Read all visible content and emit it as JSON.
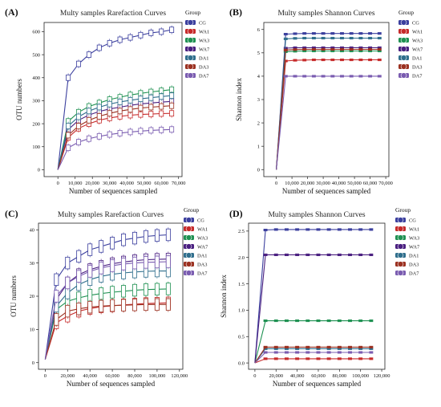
{
  "colors": {
    "CG": "#3b3f9e",
    "WA1": "#c62a2a",
    "WA3": "#1f9152",
    "WA7": "#4a1f80",
    "DA1": "#2f6e8c",
    "DA3": "#9b3121",
    "DA7": "#7a5cb0"
  },
  "chart_data": [
    {
      "panel": "(A)",
      "type": "line",
      "title": "Multy samples Rarefaction Curves",
      "xlabel": "Number of sequences sampled",
      "ylabel": "OTU numbers",
      "xlim": [
        -8000,
        72000
      ],
      "ylim": [
        -30,
        640
      ],
      "xticks": [
        0,
        10000,
        20000,
        30000,
        40000,
        50000,
        60000,
        70000
      ],
      "xtick_labels": [
        "0",
        "10,000",
        "20,000",
        "30,000",
        "40,000",
        "50,000",
        "60,000",
        "70,000"
      ],
      "yticks": [
        0,
        100,
        200,
        300,
        400,
        500,
        600
      ],
      "ytick_labels": [
        "0",
        "100",
        "200",
        "300",
        "400",
        "500",
        "600"
      ],
      "legend_title": "Group",
      "legend_position": "right",
      "series": [
        {
          "name": "CG",
          "x": [
            0,
            6000,
            12000,
            18000,
            24000,
            30000,
            36000,
            42000,
            48000,
            54000,
            60000,
            66000
          ],
          "values": [
            0,
            400,
            460,
            500,
            530,
            550,
            565,
            575,
            585,
            595,
            600,
            608
          ]
        },
        {
          "name": "WA1",
          "x": [
            0,
            6000,
            12000,
            18000,
            24000,
            30000,
            36000,
            42000,
            48000,
            54000,
            60000,
            66000
          ],
          "values": [
            0,
            140,
            180,
            200,
            215,
            225,
            232,
            237,
            240,
            242,
            244,
            245
          ]
        },
        {
          "name": "WA3",
          "x": [
            0,
            6000,
            12000,
            18000,
            24000,
            30000,
            36000,
            42000,
            48000,
            54000,
            60000,
            66000
          ],
          "values": [
            0,
            210,
            250,
            275,
            290,
            305,
            315,
            325,
            332,
            338,
            343,
            348
          ]
        },
        {
          "name": "WA7",
          "x": [
            0,
            6000,
            12000,
            18000,
            24000,
            30000,
            36000,
            42000,
            48000,
            54000,
            60000,
            66000
          ],
          "values": [
            0,
            175,
            215,
            238,
            253,
            264,
            272,
            280,
            286,
            290,
            294,
            297
          ]
        },
        {
          "name": "DA1",
          "x": [
            0,
            6000,
            12000,
            18000,
            24000,
            30000,
            36000,
            42000,
            48000,
            54000,
            60000,
            66000
          ],
          "values": [
            0,
            190,
            230,
            255,
            272,
            285,
            295,
            302,
            308,
            313,
            318,
            322
          ]
        },
        {
          "name": "DA3",
          "x": [
            0,
            6000,
            12000,
            18000,
            24000,
            30000,
            36000,
            42000,
            48000,
            54000,
            60000,
            66000
          ],
          "values": [
            0,
            150,
            190,
            215,
            232,
            245,
            255,
            262,
            268,
            272,
            275,
            278
          ]
        },
        {
          "name": "DA7",
          "x": [
            0,
            6000,
            12000,
            18000,
            24000,
            30000,
            36000,
            42000,
            48000,
            54000,
            60000,
            66000
          ],
          "values": [
            0,
            95,
            120,
            135,
            145,
            153,
            159,
            164,
            168,
            171,
            173,
            175
          ]
        }
      ]
    },
    {
      "panel": "(B)",
      "type": "line",
      "title": "Multy samples Shannon Curves",
      "xlabel": "Number of sequences sampled",
      "ylabel": "Shannon index",
      "xlim": [
        -8000,
        72000
      ],
      "ylim": [
        -0.3,
        6.3
      ],
      "xticks": [
        0,
        10000,
        20000,
        30000,
        40000,
        50000,
        60000,
        70000
      ],
      "xtick_labels": [
        "0",
        "10,000",
        "20,000",
        "30,000",
        "40,000",
        "50,000",
        "60,000",
        "70,000"
      ],
      "yticks": [
        0,
        1,
        2,
        3,
        4,
        5,
        6
      ],
      "ytick_labels": [
        "0",
        "1",
        "2",
        "3",
        "4",
        "5",
        "6"
      ],
      "legend_title": "Group",
      "legend_position": "right",
      "series": [
        {
          "name": "CG",
          "x": [
            0,
            6000,
            12000,
            18000,
            24000,
            30000,
            36000,
            42000,
            48000,
            54000,
            60000,
            66000
          ],
          "values": [
            0,
            5.8,
            5.82,
            5.83,
            5.83,
            5.83,
            5.83,
            5.83,
            5.83,
            5.83,
            5.83,
            5.83
          ]
        },
        {
          "name": "WA1",
          "x": [
            0,
            6000,
            12000,
            18000,
            24000,
            30000,
            36000,
            42000,
            48000,
            54000,
            60000,
            66000
          ],
          "values": [
            0,
            4.65,
            4.68,
            4.69,
            4.7,
            4.7,
            4.7,
            4.7,
            4.7,
            4.7,
            4.7,
            4.7
          ]
        },
        {
          "name": "WA3",
          "x": [
            0,
            6000,
            12000,
            18000,
            24000,
            30000,
            36000,
            42000,
            48000,
            54000,
            60000,
            66000
          ],
          "values": [
            0,
            5.05,
            5.07,
            5.08,
            5.08,
            5.08,
            5.08,
            5.08,
            5.08,
            5.08,
            5.08,
            5.08
          ]
        },
        {
          "name": "WA7",
          "x": [
            0,
            6000,
            12000,
            18000,
            24000,
            30000,
            36000,
            42000,
            48000,
            54000,
            60000,
            66000
          ],
          "values": [
            0,
            5.2,
            5.22,
            5.22,
            5.22,
            5.22,
            5.22,
            5.22,
            5.22,
            5.22,
            5.22,
            5.22
          ]
        },
        {
          "name": "DA1",
          "x": [
            0,
            6000,
            12000,
            18000,
            24000,
            30000,
            36000,
            42000,
            48000,
            54000,
            60000,
            66000
          ],
          "values": [
            0,
            5.6,
            5.62,
            5.63,
            5.63,
            5.63,
            5.63,
            5.63,
            5.63,
            5.63,
            5.63,
            5.63
          ]
        },
        {
          "name": "DA3",
          "x": [
            0,
            6000,
            12000,
            18000,
            24000,
            30000,
            36000,
            42000,
            48000,
            54000,
            60000,
            66000
          ],
          "values": [
            0,
            5.12,
            5.14,
            5.15,
            5.15,
            5.15,
            5.15,
            5.15,
            5.15,
            5.15,
            5.15,
            5.15
          ]
        },
        {
          "name": "DA7",
          "x": [
            0,
            6000,
            12000,
            18000,
            24000,
            30000,
            36000,
            42000,
            48000,
            54000,
            60000,
            66000
          ],
          "values": [
            0,
            4.0,
            4.0,
            4.0,
            4.0,
            4.0,
            4.0,
            4.0,
            4.0,
            4.0,
            4.0,
            4.0
          ]
        }
      ]
    },
    {
      "panel": "(C)",
      "type": "line",
      "title": "Multy samples Rarefaction Curves",
      "xlabel": "Number of sequences sampled",
      "ylabel": "OTU numbers",
      "xlim": [
        -6000,
        123000
      ],
      "ylim": [
        -2,
        42
      ],
      "xticks": [
        0,
        20000,
        40000,
        60000,
        80000,
        100000,
        120000
      ],
      "xtick_labels": [
        "0",
        "20,000",
        "40,000",
        "60,000",
        "80,000",
        "100,000",
        "120,000"
      ],
      "yticks": [
        0,
        10,
        20,
        30,
        40
      ],
      "ytick_labels": [
        "0",
        "10",
        "20",
        "30",
        "40"
      ],
      "legend_title": "Group",
      "legend_position": "right",
      "series": [
        {
          "name": "CG",
          "x": [
            0,
            10000,
            20000,
            30000,
            40000,
            50000,
            60000,
            70000,
            80000,
            90000,
            100000,
            110000
          ],
          "values": [
            1,
            25,
            30,
            32,
            34,
            35,
            36,
            37,
            37.5,
            38,
            38.3,
            38.5
          ]
        },
        {
          "name": "WA1",
          "x": [
            0,
            10000,
            20000,
            30000,
            40000,
            50000,
            60000,
            70000,
            80000,
            90000,
            100000,
            110000
          ],
          "values": [
            1,
            12,
            14,
            15.5,
            16.3,
            16.8,
            17.1,
            17.4,
            17.6,
            17.8,
            17.9,
            18
          ]
        },
        {
          "name": "WA3",
          "x": [
            0,
            10000,
            20000,
            30000,
            40000,
            50000,
            60000,
            70000,
            80000,
            90000,
            100000,
            110000
          ],
          "values": [
            1,
            16,
            18.5,
            19.5,
            20.3,
            20.8,
            21.2,
            21.5,
            21.8,
            22,
            22.1,
            22.2
          ]
        },
        {
          "name": "WA7",
          "x": [
            0,
            10000,
            20000,
            30000,
            40000,
            50000,
            60000,
            70000,
            80000,
            90000,
            100000,
            110000
          ],
          "values": [
            1,
            19,
            24,
            26.5,
            28,
            29,
            29.8,
            30.3,
            30.7,
            31,
            31.1,
            31.2
          ]
        },
        {
          "name": "DA1",
          "x": [
            0,
            10000,
            20000,
            30000,
            40000,
            50000,
            60000,
            70000,
            80000,
            90000,
            100000,
            110000
          ],
          "values": [
            1,
            17,
            21,
            23.5,
            25,
            26,
            26.6,
            27,
            27.3,
            27.5,
            27.6,
            27.6
          ]
        },
        {
          "name": "DA3",
          "x": [
            0,
            10000,
            20000,
            30000,
            40000,
            50000,
            60000,
            70000,
            80000,
            90000,
            100000,
            110000
          ],
          "values": [
            1,
            13,
            15.5,
            16.2,
            16.7,
            17,
            17.2,
            17.3,
            17.4,
            17.5,
            17.5,
            17.5
          ]
        },
        {
          "name": "DA7",
          "x": [
            0,
            10000,
            20000,
            30000,
            40000,
            50000,
            60000,
            70000,
            80000,
            90000,
            100000,
            110000
          ],
          "values": [
            1,
            20,
            24,
            26,
            27.5,
            28.5,
            29.2,
            29.7,
            30,
            30.2,
            30.3,
            30.4
          ]
        }
      ]
    },
    {
      "panel": "(D)",
      "type": "line",
      "title": "Multy samples Shannon Curves",
      "xlabel": "Number of sequences sampled",
      "ylabel": "Shannon index",
      "xlim": [
        -6000,
        123000
      ],
      "ylim": [
        -0.12,
        2.65
      ],
      "xticks": [
        0,
        20000,
        40000,
        60000,
        80000,
        100000,
        120000
      ],
      "xtick_labels": [
        "0",
        "20,000",
        "40,000",
        "60,000",
        "80,000",
        "100,000",
        "120,000"
      ],
      "yticks": [
        0,
        0.5,
        1.0,
        1.5,
        2.0,
        2.5
      ],
      "ytick_labels": [
        "0.0",
        "0.5",
        "1.0",
        "1.5",
        "2.0",
        "2.5"
      ],
      "legend_title": "Group",
      "legend_position": "right",
      "series": [
        {
          "name": "CG",
          "x": [
            0,
            10000,
            20000,
            30000,
            40000,
            50000,
            60000,
            70000,
            80000,
            90000,
            100000,
            110000
          ],
          "values": [
            0,
            2.52,
            2.53,
            2.53,
            2.53,
            2.53,
            2.53,
            2.53,
            2.53,
            2.53,
            2.53,
            2.53
          ]
        },
        {
          "name": "WA1",
          "x": [
            0,
            10000,
            20000,
            30000,
            40000,
            50000,
            60000,
            70000,
            80000,
            90000,
            100000,
            110000
          ],
          "values": [
            0,
            0.08,
            0.08,
            0.08,
            0.08,
            0.08,
            0.08,
            0.08,
            0.08,
            0.08,
            0.08,
            0.08
          ]
        },
        {
          "name": "WA3",
          "x": [
            0,
            10000,
            20000,
            30000,
            40000,
            50000,
            60000,
            70000,
            80000,
            90000,
            100000,
            110000
          ],
          "values": [
            0,
            0.8,
            0.8,
            0.8,
            0.8,
            0.8,
            0.8,
            0.8,
            0.8,
            0.8,
            0.8,
            0.8
          ]
        },
        {
          "name": "WA7",
          "x": [
            0,
            10000,
            20000,
            30000,
            40000,
            50000,
            60000,
            70000,
            80000,
            90000,
            100000,
            110000
          ],
          "values": [
            0,
            2.05,
            2.05,
            2.05,
            2.05,
            2.05,
            2.05,
            2.05,
            2.05,
            2.05,
            2.05,
            2.05
          ]
        },
        {
          "name": "DA1",
          "x": [
            0,
            10000,
            20000,
            30000,
            40000,
            50000,
            60000,
            70000,
            80000,
            90000,
            100000,
            110000
          ],
          "values": [
            0,
            0.27,
            0.27,
            0.27,
            0.27,
            0.27,
            0.27,
            0.27,
            0.27,
            0.27,
            0.27,
            0.27
          ]
        },
        {
          "name": "DA3",
          "x": [
            0,
            10000,
            20000,
            30000,
            40000,
            50000,
            60000,
            70000,
            80000,
            90000,
            100000,
            110000
          ],
          "values": [
            0,
            0.3,
            0.3,
            0.3,
            0.3,
            0.3,
            0.3,
            0.3,
            0.3,
            0.3,
            0.3,
            0.3
          ]
        },
        {
          "name": "DA7",
          "x": [
            0,
            10000,
            20000,
            30000,
            40000,
            50000,
            60000,
            70000,
            80000,
            90000,
            100000,
            110000
          ],
          "values": [
            0,
            0.2,
            0.2,
            0.2,
            0.2,
            0.2,
            0.2,
            0.2,
            0.2,
            0.2,
            0.2,
            0.2
          ]
        }
      ]
    }
  ]
}
